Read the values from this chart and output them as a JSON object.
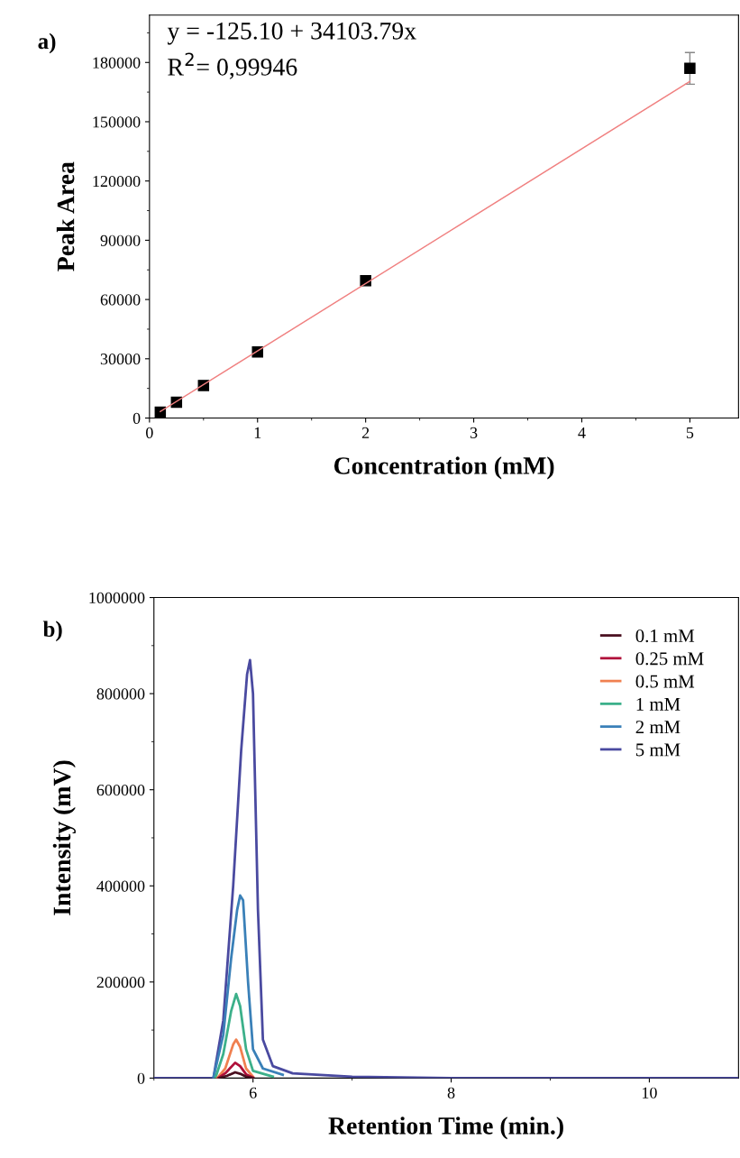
{
  "chart_data": [
    {
      "type": "scatter",
      "xlabel": "Concentration (mM)",
      "ylabel": "Peak Area",
      "xlim": [
        0,
        5.45
      ],
      "ylim": [
        0,
        204000
      ],
      "xticks": [
        0,
        1,
        2,
        3,
        4,
        5
      ],
      "yticks": [
        0,
        30000,
        60000,
        90000,
        120000,
        150000,
        180000
      ],
      "grid": false,
      "legend": false,
      "annotations": [
        "a)",
        "y = -125.10 + 34103.79x",
        "R$^{2}$= 0,99946"
      ],
      "series": [
        {
          "type": "scatter",
          "x": [
            0.1,
            0.25,
            0.5,
            1,
            2,
            5
          ],
          "values": [
            3000,
            8000,
            16500,
            33500,
            69500,
            177000
          ],
          "errors": [
            null,
            null,
            null,
            null,
            null,
            8000
          ],
          "color": "#000000",
          "marker": "square"
        },
        {
          "type": "line",
          "x": [
            0.1,
            5
          ],
          "values": [
            3300,
            170400
          ],
          "color": "#f08080",
          "marker": "none"
        }
      ]
    },
    {
      "type": "line",
      "xlabel": "Retention Time (min.)",
      "ylabel": "Intensity (mV)",
      "xlim": [
        5,
        10.9
      ],
      "ylim": [
        0,
        1000000
      ],
      "xticks": [
        6,
        8,
        10
      ],
      "yticks": [
        0,
        200000,
        400000,
        600000,
        800000,
        1000000
      ],
      "grid": false,
      "legend": "top right",
      "marker": "none",
      "line_style": "solid",
      "annotations": [
        "b)"
      ],
      "series": [
        {
          "name": "0.1 mM",
          "color": "#4a1020",
          "x": [
            5.66,
            5.74,
            5.82,
            5.87,
            5.93,
            6.0
          ],
          "values": [
            0,
            5000,
            12000,
            9000,
            3000,
            0
          ]
        },
        {
          "name": "0.25 mM",
          "color": "#b0103a",
          "x": [
            5.65,
            5.73,
            5.82,
            5.87,
            5.93,
            6.0
          ],
          "values": [
            0,
            12000,
            32000,
            25000,
            8000,
            1000
          ]
        },
        {
          "name": "0.5 mM",
          "color": "#f08050",
          "x": [
            5.64,
            5.72,
            5.8,
            5.83,
            5.87,
            5.93,
            6.0
          ],
          "values": [
            0,
            20000,
            70000,
            80000,
            65000,
            20000,
            3000
          ]
        },
        {
          "name": "1 mM",
          "color": "#3cb08a",
          "x": [
            5.62,
            5.7,
            5.78,
            5.83,
            5.87,
            5.93,
            6.0,
            6.2
          ],
          "values": [
            0,
            50000,
            140000,
            175000,
            150000,
            60000,
            15000,
            3000
          ]
        },
        {
          "name": "2 mM",
          "color": "#3a80b8",
          "x": [
            5.6,
            5.7,
            5.78,
            5.84,
            5.87,
            5.9,
            5.95,
            6.0,
            6.1,
            6.3
          ],
          "values": [
            0,
            90000,
            250000,
            350000,
            380000,
            370000,
            200000,
            60000,
            20000,
            7000
          ]
        },
        {
          "name": "5 mM",
          "color": "#4a4aa0",
          "x": [
            5,
            5.6,
            5.7,
            5.8,
            5.88,
            5.94,
            5.97,
            6.0,
            6.05,
            6.1,
            6.2,
            6.4,
            7,
            8,
            10.9
          ],
          "values": [
            0,
            0,
            120000,
            400000,
            680000,
            840000,
            870000,
            800000,
            350000,
            80000,
            25000,
            10000,
            3000,
            0,
            0
          ]
        }
      ]
    }
  ]
}
